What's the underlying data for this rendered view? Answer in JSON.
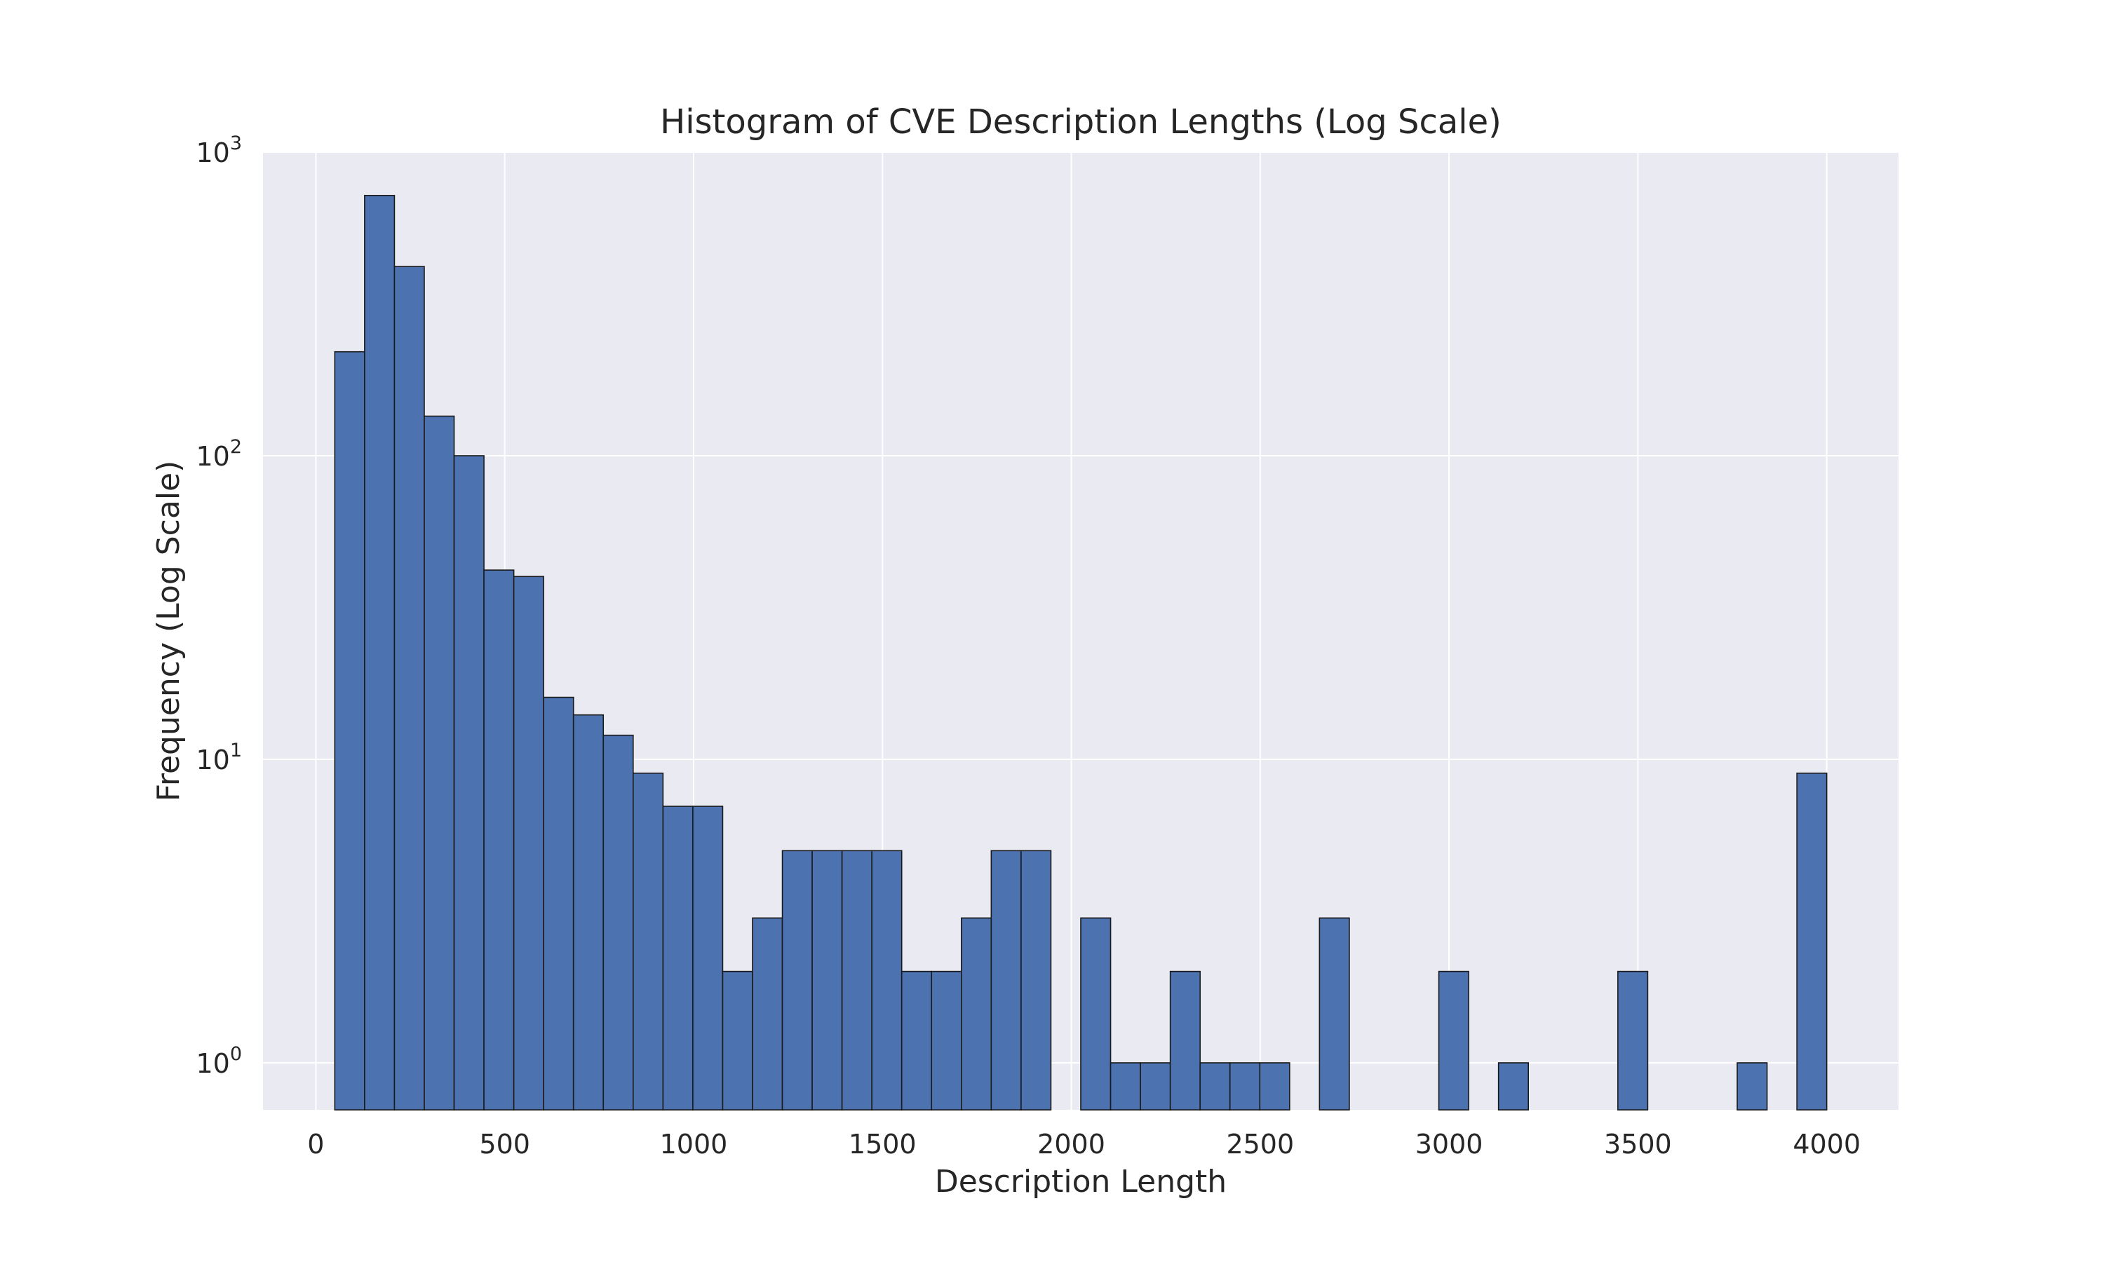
{
  "chart_data": {
    "type": "bar",
    "title": "Histogram of CVE Description Lengths (Log Scale)",
    "xlabel": "Description Length",
    "ylabel": "Frequency (Log Scale)",
    "y_scale": "log",
    "xlim": [
      -140,
      4190
    ],
    "ylim": [
      0.7,
      1000
    ],
    "grid": true,
    "background_color": "#eaeaf2",
    "bar_color": "#4c72b0",
    "bar_edge_color": "#1a1a1a",
    "x_ticks": [
      0,
      500,
      1000,
      1500,
      2000,
      2500,
      3000,
      3500,
      4000
    ],
    "x_tick_labels": [
      "0",
      "500",
      "1000",
      "1500",
      "2000",
      "2500",
      "3000",
      "3500",
      "4000"
    ],
    "y_ticks": [
      1,
      10,
      100,
      1000
    ],
    "y_tick_labels": [
      {
        "base": "10",
        "exp": "0"
      },
      {
        "base": "10",
        "exp": "1"
      },
      {
        "base": "10",
        "exp": "2"
      },
      {
        "base": "10",
        "exp": "3"
      }
    ],
    "bin_edges": [
      50,
      129,
      208,
      287,
      366,
      445,
      524,
      603,
      682,
      761,
      840,
      919,
      998,
      1077,
      1156,
      1235,
      1314,
      1393,
      1472,
      1551,
      1630,
      1709,
      1788,
      1867,
      1946,
      2025,
      2104,
      2183,
      2262,
      2341,
      2420,
      2499,
      2578,
      2657,
      2736,
      2815,
      2894,
      2973,
      3052,
      3131,
      3210,
      3289,
      3368,
      3447,
      3526,
      3605,
      3684,
      3763,
      3842,
      3921,
      4000
    ],
    "counts": [
      220,
      720,
      420,
      135,
      100,
      42,
      40,
      16,
      14,
      12,
      9,
      7,
      7,
      2,
      3,
      5,
      5,
      5,
      5,
      2,
      2,
      3,
      5,
      5,
      0,
      3,
      1,
      1,
      2,
      1,
      1,
      1,
      0,
      3,
      0,
      0,
      0,
      2,
      0,
      1,
      0,
      0,
      0,
      2,
      0,
      0,
      0,
      1,
      0,
      9
    ]
  }
}
